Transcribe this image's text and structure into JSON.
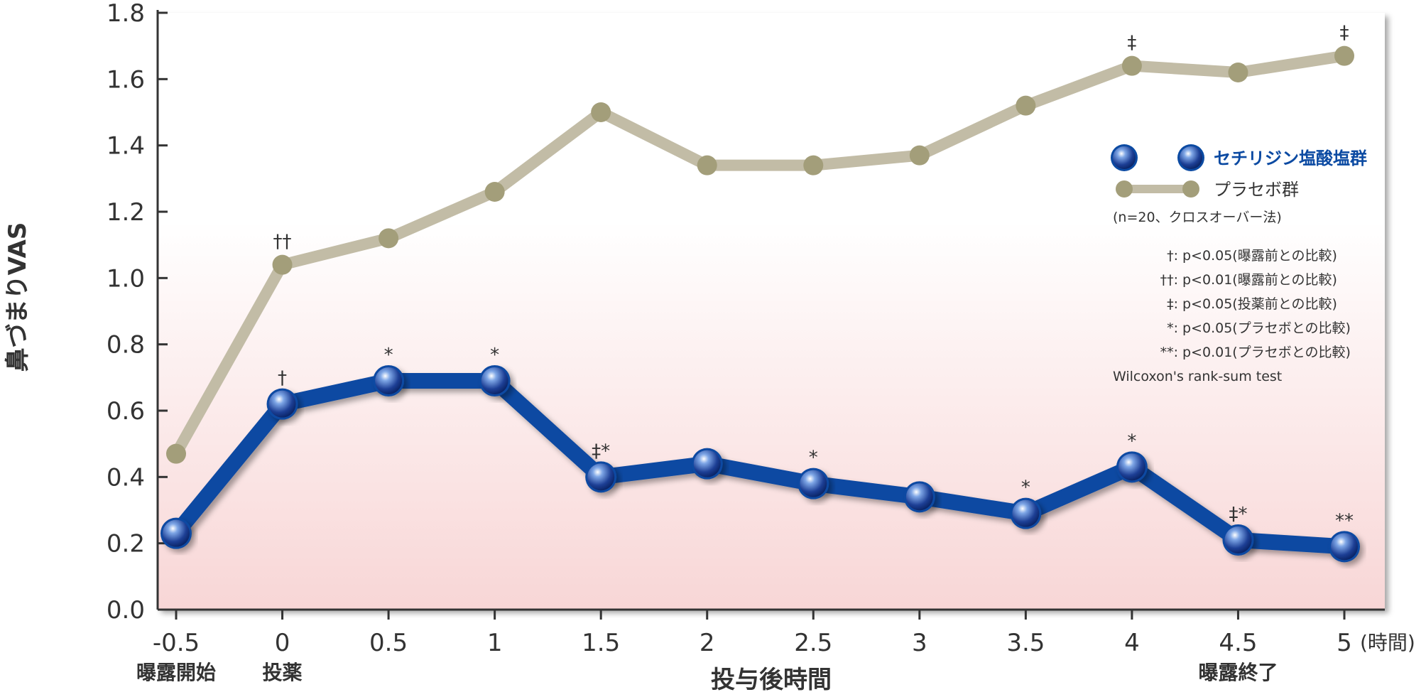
{
  "chart_data": {
    "type": "line",
    "x": [
      -0.5,
      0,
      0.5,
      1,
      1.5,
      2,
      2.5,
      3,
      3.5,
      4,
      4.5,
      5
    ],
    "x_tick_labels": [
      "-0.5",
      "0",
      "0.5",
      "1",
      "1.5",
      "2",
      "2.5",
      "3",
      "3.5",
      "4",
      "4.5",
      "5"
    ],
    "x_unit_label": "(時間)",
    "xlabel": "投与後時間",
    "ylabel": "鼻づまりVAS",
    "ylim": [
      0,
      1.8
    ],
    "y_ticks": [
      "0.0",
      "0.2",
      "0.4",
      "0.6",
      "0.8",
      "1.0",
      "1.2",
      "1.4",
      "1.6",
      "1.8"
    ],
    "grid": false,
    "category_labels": [
      {
        "x": -0.5,
        "text": "曝露開始"
      },
      {
        "x": 0,
        "text": "投薬"
      },
      {
        "x": 4.5,
        "text": "曝露終了"
      }
    ],
    "series": [
      {
        "name": "プラセボ群",
        "color": "#c2bca6",
        "marker_color": "#a39e7a",
        "values": [
          0.47,
          1.04,
          1.12,
          1.26,
          1.5,
          1.34,
          1.34,
          1.37,
          1.52,
          1.64,
          1.62,
          1.67
        ],
        "annotations": [
          {
            "x": 0,
            "text": "††"
          },
          {
            "x": 4,
            "text": "‡"
          },
          {
            "x": 5,
            "text": "‡"
          }
        ]
      },
      {
        "name": "セチリジン塩酸塩群",
        "color": "#0b4aa2",
        "marker_color": "#1e4aa0",
        "values": [
          0.23,
          0.62,
          0.69,
          0.69,
          0.4,
          0.44,
          0.38,
          0.34,
          0.29,
          0.43,
          0.21,
          0.19
        ],
        "annotations": [
          {
            "x": 0,
            "text": "†"
          },
          {
            "x": 0.5,
            "text": "*"
          },
          {
            "x": 1,
            "text": "*"
          },
          {
            "x": 1.5,
            "text": "‡*"
          },
          {
            "x": 2.5,
            "text": "*"
          },
          {
            "x": 3.5,
            "text": "*"
          },
          {
            "x": 4,
            "text": "*"
          },
          {
            "x": 4.5,
            "text": "‡*"
          },
          {
            "x": 5,
            "text": "**"
          }
        ]
      }
    ],
    "legend": {
      "position": "right",
      "entries": [
        "セチリジン塩酸塩群",
        "プラセボ群"
      ],
      "note": "(n=20、クロスオーバー法)",
      "significance": [
        "†: p<0.05(曝露前との比較)",
        "††: p<0.01(曝露前との比較)",
        "‡: p<0.05(投薬前との比較)",
        "*: p<0.05(プラセボとの比較)",
        "**: p<0.01(プラセボとの比較)"
      ],
      "test": "Wilcoxon's rank-sum test"
    },
    "background_gradient": [
      "#ffffff",
      "#f8d6d6"
    ]
  }
}
